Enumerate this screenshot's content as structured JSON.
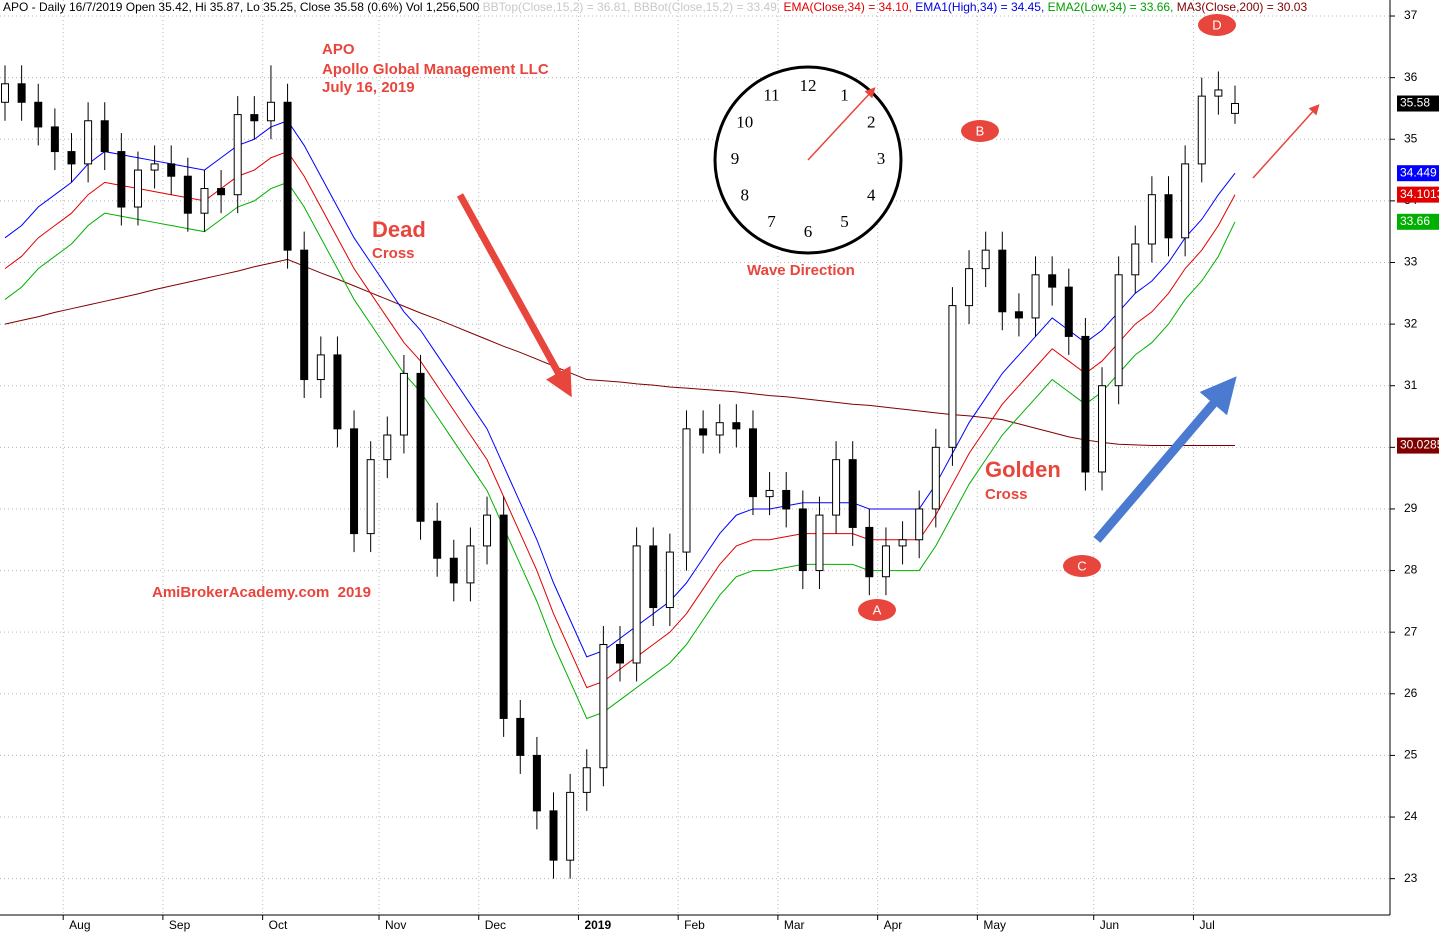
{
  "chart_data": {
    "type": "candlestick",
    "header": [
      {
        "text": "APO - Daily 16/7/2019 Open 35.42, Hi 35.87, Lo 35.25, Close 35.58 (0.6%) Vol 1,256,500 ",
        "color": "#000000"
      },
      {
        "text": "BBTop(Close,15,2) = 36.81, BBBot(Close,15,2) = 33.49, ",
        "color": "#c8c8c8"
      },
      {
        "text": "EMA(Close,34) = 34.10, ",
        "color": "#e00000"
      },
      {
        "text": "EMA1(High,34) = 34.45, ",
        "color": "#0000e0"
      },
      {
        "text": "EMA2(Low,34) = 33.66, ",
        "color": "#00a000"
      },
      {
        "text": "MA3(Close,200) = 30.03",
        "color": "#800000"
      }
    ],
    "categories": [
      null,
      null,
      null,
      null,
      "Aug",
      null,
      null,
      null,
      null,
      null,
      "Sep",
      null,
      null,
      null,
      null,
      null,
      "Oct",
      null,
      null,
      null,
      null,
      null,
      null,
      "Nov",
      null,
      null,
      null,
      null,
      null,
      "Dec",
      null,
      null,
      null,
      null,
      null,
      "2019",
      null,
      null,
      null,
      null,
      null,
      "Feb",
      null,
      null,
      null,
      null,
      null,
      "Mar",
      null,
      null,
      null,
      null,
      null,
      "Apr",
      null,
      null,
      null,
      null,
      null,
      "May",
      null,
      null,
      null,
      null,
      null,
      null,
      "Jun",
      null,
      null,
      null,
      null,
      null,
      "Jul",
      null,
      null
    ],
    "open": [
      35.6,
      35.9,
      35.6,
      35.2,
      34.8,
      34.6,
      35.3,
      34.8,
      33.9,
      34.5,
      34.6,
      34.4,
      33.8,
      34.2,
      34.1,
      35.4,
      35.3,
      35.6,
      33.2,
      31.1,
      31.5,
      30.3,
      28.6,
      29.8,
      30.2,
      31.2,
      28.8,
      28.2,
      27.8,
      28.4,
      28.9,
      25.6,
      25.0,
      24.1,
      23.3,
      24.4,
      24.8,
      26.8,
      26.5,
      28.4,
      27.4,
      28.3,
      30.3,
      30.2,
      30.4,
      30.3,
      29.2,
      29.3,
      29.0,
      28.0,
      28.9,
      29.8,
      28.7,
      27.9,
      28.4,
      28.5,
      29.0,
      30.0,
      32.3,
      32.9,
      33.2,
      32.2,
      32.1,
      32.8,
      32.6,
      31.8,
      29.6,
      31.0,
      32.8,
      33.3,
      34.1,
      33.4,
      34.6,
      35.7,
      35.42
    ],
    "high": [
      36.2,
      36.2,
      35.9,
      35.5,
      35.1,
      35.6,
      35.6,
      35.1,
      34.8,
      34.9,
      34.9,
      34.7,
      34.5,
      34.5,
      35.7,
      35.7,
      36.2,
      35.9,
      33.5,
      31.8,
      31.8,
      30.6,
      30.1,
      30.5,
      31.5,
      31.5,
      29.1,
      28.5,
      28.7,
      29.2,
      29.2,
      25.9,
      25.3,
      24.4,
      24.7,
      25.1,
      27.1,
      27.1,
      28.7,
      28.7,
      28.6,
      30.6,
      30.6,
      30.7,
      30.7,
      30.6,
      29.6,
      29.6,
      29.3,
      29.2,
      30.1,
      30.1,
      29.0,
      28.7,
      28.8,
      29.3,
      30.3,
      32.6,
      33.2,
      33.5,
      33.5,
      32.5,
      33.1,
      33.1,
      32.9,
      32.1,
      31.3,
      33.1,
      33.6,
      34.4,
      34.4,
      34.9,
      36.0,
      36.1,
      35.87
    ],
    "low": [
      35.3,
      35.3,
      34.9,
      34.5,
      34.3,
      34.3,
      34.5,
      33.6,
      33.6,
      34.2,
      34.1,
      33.5,
      33.5,
      33.8,
      33.8,
      35.0,
      35.0,
      32.9,
      30.8,
      30.8,
      30.0,
      28.3,
      28.3,
      29.5,
      29.9,
      28.5,
      27.9,
      27.5,
      27.5,
      28.1,
      25.3,
      24.7,
      23.8,
      23.0,
      23.0,
      24.1,
      24.5,
      26.2,
      26.2,
      27.1,
      27.1,
      28.0,
      29.9,
      29.9,
      30.0,
      28.9,
      28.9,
      28.7,
      27.7,
      27.7,
      28.6,
      28.4,
      27.6,
      27.6,
      28.1,
      28.2,
      28.7,
      29.7,
      32.0,
      32.6,
      31.9,
      31.8,
      31.8,
      32.3,
      31.5,
      29.3,
      29.3,
      30.7,
      32.5,
      33.0,
      33.1,
      33.1,
      34.3,
      35.4,
      35.25
    ],
    "close": [
      35.9,
      35.6,
      35.2,
      34.8,
      34.6,
      35.3,
      34.8,
      33.9,
      34.5,
      34.6,
      34.4,
      33.8,
      34.2,
      34.1,
      35.4,
      35.3,
      35.6,
      33.2,
      31.1,
      31.5,
      30.3,
      28.6,
      29.8,
      30.2,
      31.2,
      28.8,
      28.2,
      27.8,
      28.4,
      28.9,
      25.6,
      25.0,
      24.1,
      23.3,
      24.4,
      24.8,
      26.8,
      26.5,
      28.4,
      27.4,
      28.3,
      30.3,
      30.2,
      30.4,
      30.3,
      29.2,
      29.3,
      29.0,
      28.0,
      28.9,
      29.8,
      28.7,
      27.9,
      28.4,
      28.5,
      29.0,
      30.0,
      32.3,
      32.9,
      33.2,
      32.2,
      32.1,
      32.8,
      32.6,
      31.8,
      29.6,
      31.0,
      32.8,
      33.3,
      34.1,
      33.4,
      34.6,
      35.7,
      35.8,
      35.58
    ],
    "series": [
      {
        "color": "#800000",
        "values": [
          32.0,
          32.06,
          32.12,
          32.19,
          32.25,
          32.31,
          32.37,
          32.43,
          32.49,
          32.56,
          32.62,
          32.68,
          32.74,
          32.8,
          32.86,
          32.93,
          32.99,
          33.05,
          32.94,
          32.83,
          32.73,
          32.62,
          32.51,
          32.4,
          32.29,
          32.18,
          32.08,
          31.97,
          31.86,
          31.75,
          31.64,
          31.54,
          31.43,
          31.32,
          31.21,
          31.1,
          31.08,
          31.06,
          31.03,
          31.01,
          30.98,
          30.96,
          30.94,
          30.92,
          30.9,
          30.87,
          30.84,
          30.82,
          30.79,
          30.76,
          30.73,
          30.7,
          30.68,
          30.65,
          30.62,
          30.59,
          30.56,
          30.53,
          30.51,
          30.48,
          30.45,
          30.38,
          30.31,
          30.24,
          30.17,
          30.12,
          30.08,
          30.05,
          30.04,
          30.03,
          30.03,
          30.03,
          30.03,
          30.03,
          30.03
        ]
      },
      {
        "color": "#00b000",
        "values": [
          32.4,
          32.6,
          32.9,
          33.1,
          33.3,
          33.6,
          33.8,
          33.75,
          33.7,
          33.65,
          33.6,
          33.55,
          33.5,
          33.7,
          33.9,
          34.0,
          34.2,
          34.3,
          33.9,
          33.4,
          32.9,
          32.4,
          32.0,
          31.6,
          31.2,
          30.9,
          30.5,
          30.1,
          29.7,
          29.3,
          28.7,
          28.1,
          27.5,
          26.8,
          26.2,
          25.6,
          25.7,
          25.9,
          26.1,
          26.3,
          26.5,
          26.8,
          27.2,
          27.6,
          27.9,
          28.0,
          28.0,
          28.05,
          28.1,
          28.1,
          28.1,
          28.1,
          28.0,
          28.0,
          28.0,
          28.0,
          28.4,
          28.9,
          29.4,
          29.8,
          30.2,
          30.5,
          30.8,
          31.1,
          30.9,
          30.7,
          30.9,
          31.2,
          31.5,
          31.7,
          32.0,
          32.4,
          32.7,
          33.1,
          33.66
        ]
      },
      {
        "color": "#e00000",
        "values": [
          32.9,
          33.1,
          33.4,
          33.6,
          33.8,
          34.1,
          34.3,
          34.25,
          34.2,
          34.15,
          34.1,
          34.05,
          34.0,
          34.2,
          34.4,
          34.5,
          34.7,
          34.8,
          34.4,
          33.9,
          33.4,
          32.9,
          32.5,
          32.1,
          31.7,
          31.4,
          31.0,
          30.6,
          30.2,
          29.8,
          29.2,
          28.6,
          28.0,
          27.3,
          26.7,
          26.1,
          26.2,
          26.4,
          26.6,
          26.8,
          27.0,
          27.3,
          27.7,
          28.1,
          28.4,
          28.5,
          28.5,
          28.55,
          28.6,
          28.6,
          28.6,
          28.6,
          28.5,
          28.5,
          28.5,
          28.5,
          28.9,
          29.4,
          29.9,
          30.3,
          30.7,
          31.0,
          31.3,
          31.6,
          31.4,
          31.2,
          31.4,
          31.7,
          32.0,
          32.2,
          32.5,
          32.9,
          33.2,
          33.6,
          34.1
        ]
      },
      {
        "color": "#0000ff",
        "values": [
          33.4,
          33.6,
          33.9,
          34.1,
          34.3,
          34.6,
          34.8,
          34.75,
          34.7,
          34.65,
          34.6,
          34.55,
          34.5,
          34.7,
          34.9,
          35.0,
          35.2,
          35.3,
          34.9,
          34.4,
          33.9,
          33.4,
          33.0,
          32.6,
          32.2,
          31.9,
          31.5,
          31.1,
          30.7,
          30.3,
          29.7,
          29.1,
          28.5,
          27.8,
          27.2,
          26.6,
          26.7,
          26.9,
          27.1,
          27.3,
          27.5,
          27.8,
          28.2,
          28.6,
          28.9,
          29.0,
          29.0,
          29.05,
          29.1,
          29.1,
          29.1,
          29.1,
          29.0,
          29.0,
          29.0,
          29.0,
          29.4,
          29.9,
          30.4,
          30.8,
          31.2,
          31.5,
          31.8,
          32.1,
          31.9,
          31.7,
          31.9,
          32.2,
          32.5,
          32.7,
          33.0,
          33.4,
          33.7,
          34.1,
          34.45
        ]
      }
    ],
    "price_tags": [
      {
        "value": 35.58,
        "color": "#000000"
      },
      {
        "value": 34.449,
        "color": "#0000ff"
      },
      {
        "value": 34.1013,
        "color": "#e00000"
      },
      {
        "value": 33.66,
        "color": "#00b000"
      },
      {
        "value": 30.0285,
        "color": "#800000"
      }
    ],
    "ylim": [
      22.41,
      37.26
    ],
    "yticks": [
      23,
      24,
      25,
      26,
      27,
      28,
      29,
      30,
      31,
      32,
      33,
      34,
      35,
      36,
      37
    ],
    "grid": true,
    "annotations": [
      "APO",
      "Apollo Global Management LLC",
      "July 16, 2019",
      "Dead",
      "Cross",
      "Golden",
      "Cross",
      "Wave Direction",
      "AmiBrokerAcademy.com  2019"
    ],
    "waves": [
      "A",
      "B",
      "C",
      "D"
    ],
    "clock": [
      "12",
      "1",
      "2",
      "3",
      "4",
      "5",
      "6",
      "7",
      "8",
      "9",
      "10",
      "11"
    ]
  }
}
